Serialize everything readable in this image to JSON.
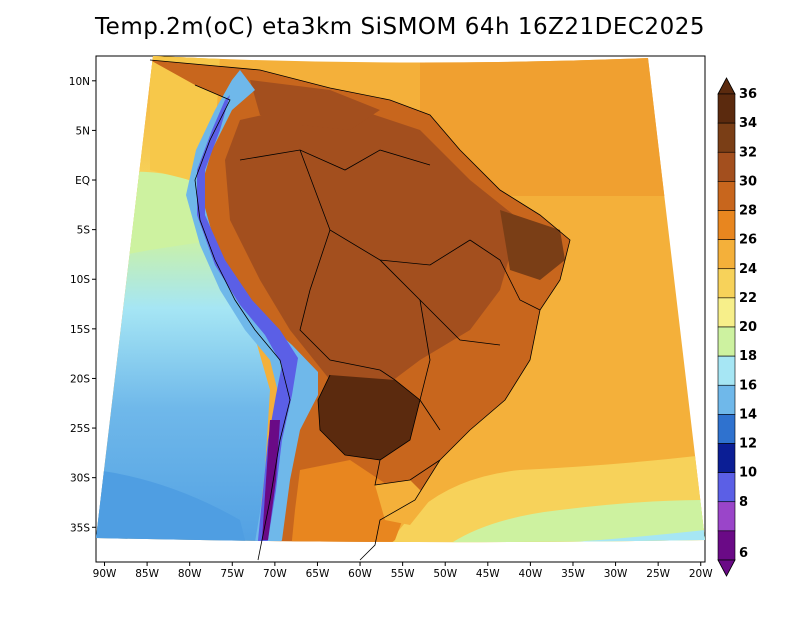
{
  "title": "Temp.2m(oC) eta3km SiSMOM 64h 16Z21DEC2025",
  "x_axis": {
    "labels": [
      "90W",
      "85W",
      "80W",
      "75W",
      "70W",
      "65W",
      "60W",
      "55W",
      "50W",
      "45W",
      "40W",
      "35W",
      "30W",
      "25W",
      "20W"
    ],
    "lon": [
      -90,
      -85,
      -80,
      -75,
      -70,
      -65,
      -60,
      -55,
      -50,
      -45,
      -40,
      -35,
      -30,
      -25,
      -20
    ]
  },
  "y_axis": {
    "labels": [
      "10N",
      "5N",
      "EQ",
      "5S",
      "10S",
      "15S",
      "20S",
      "25S",
      "30S",
      "35S"
    ],
    "lat": [
      10,
      5,
      0,
      -5,
      -10,
      -15,
      -20,
      -25,
      -30,
      -35
    ]
  },
  "colorbar": {
    "labels": [
      "36",
      "34",
      "32",
      "30",
      "28",
      "26",
      "24",
      "22",
      "20",
      "18",
      "16",
      "14",
      "12",
      "10",
      "8",
      "6"
    ],
    "colors": [
      "#5b2a0e",
      "#7a3e16",
      "#a34f1e",
      "#c8661d",
      "#e8861f",
      "#f4b03a",
      "#f7d25a",
      "#f7ef8a",
      "#cdf2a0",
      "#a6e6f4",
      "#6fb8ea",
      "#2f72cf",
      "#0b1e95",
      "#5b5fe6",
      "#9a45c9",
      "#6a0a86"
    ]
  },
  "legend_colors": {
    "ocean_warm": "#f7c84a",
    "ocean_mid": "#f6e07a",
    "ocean_cool": "#6fb8ea",
    "land_hot": "#a34f1e",
    "land_very_hot": "#5b2a0e"
  }
}
